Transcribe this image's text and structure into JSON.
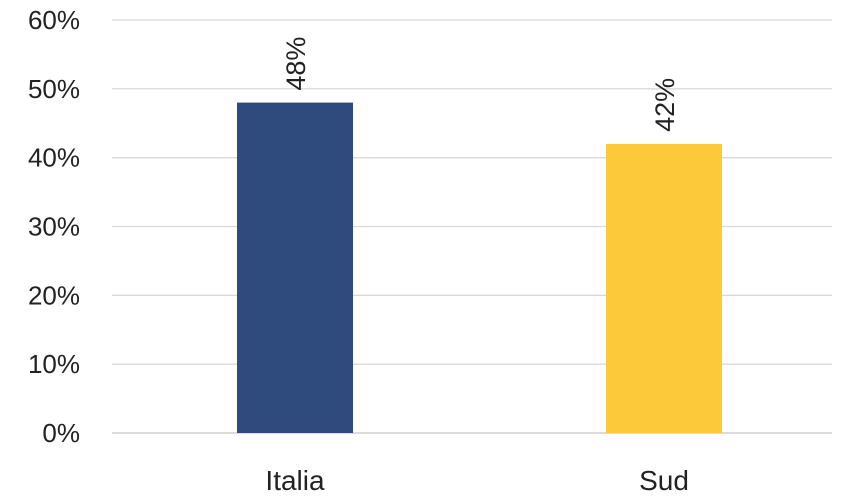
{
  "chart_data": {
    "type": "bar",
    "title": "",
    "xlabel": "",
    "ylabel": "",
    "categories": [
      "Italia",
      "Sud"
    ],
    "values": [
      48,
      42
    ],
    "data_labels": [
      "48%",
      "42%"
    ],
    "bar_colors": [
      "#2f4a7d",
      "#fbc93a"
    ],
    "ylim": [
      0,
      60
    ],
    "yticks": [
      0,
      10,
      20,
      30,
      40,
      50,
      60
    ],
    "ytick_labels": [
      "0%",
      "10%",
      "20%",
      "30%",
      "40%",
      "50%",
      "60%"
    ],
    "grid": true,
    "legend": "none"
  }
}
